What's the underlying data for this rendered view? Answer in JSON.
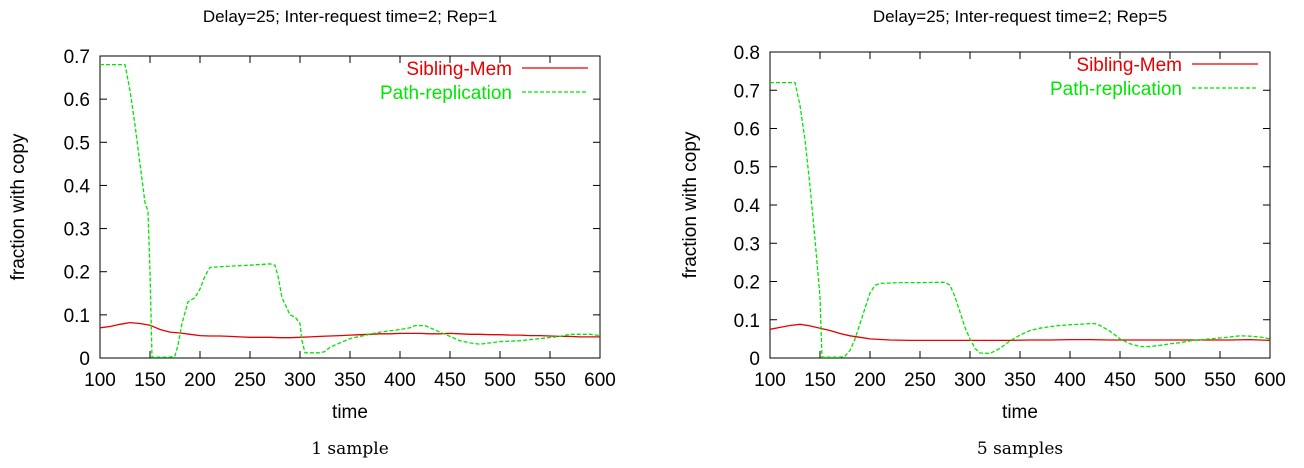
{
  "colors": {
    "sibling": "#e60000",
    "path": "#00e600",
    "axis": "#000000"
  },
  "chart_data": [
    {
      "type": "line",
      "title": "Delay=25; Inter-request time=2; Rep=1",
      "xlabel": "time",
      "ylabel": "fraction with copy",
      "caption": "1 sample",
      "xlim": [
        100,
        600
      ],
      "ylim": [
        0,
        0.7
      ],
      "xticks": [
        "100",
        "150",
        "200",
        "250",
        "300",
        "350",
        "400",
        "450",
        "500",
        "550",
        "600"
      ],
      "yticks": [
        "0",
        "0.1",
        "0.2",
        "0.3",
        "0.4",
        "0.5",
        "0.6",
        "0.7"
      ],
      "grid": false,
      "legend": "top-right",
      "series": [
        {
          "name": "Sibling-Mem",
          "x": [
            100,
            110,
            120,
            130,
            140,
            150,
            160,
            170,
            180,
            190,
            200,
            210,
            220,
            230,
            240,
            250,
            260,
            270,
            280,
            290,
            300,
            310,
            320,
            330,
            340,
            350,
            360,
            370,
            380,
            390,
            400,
            410,
            420,
            430,
            440,
            450,
            460,
            470,
            480,
            490,
            500,
            510,
            520,
            530,
            540,
            550,
            560,
            570,
            580,
            590,
            600
          ],
          "y": [
            0.07,
            0.073,
            0.078,
            0.082,
            0.08,
            0.076,
            0.066,
            0.06,
            0.058,
            0.055,
            0.052,
            0.051,
            0.051,
            0.05,
            0.049,
            0.048,
            0.048,
            0.048,
            0.047,
            0.047,
            0.048,
            0.049,
            0.05,
            0.051,
            0.052,
            0.053,
            0.054,
            0.055,
            0.056,
            0.056,
            0.057,
            0.057,
            0.057,
            0.056,
            0.056,
            0.057,
            0.056,
            0.055,
            0.055,
            0.054,
            0.054,
            0.053,
            0.053,
            0.052,
            0.052,
            0.051,
            0.05,
            0.05,
            0.049,
            0.049,
            0.049
          ]
        },
        {
          "name": "Path-replication",
          "x": [
            100,
            110,
            120,
            125,
            130,
            135,
            140,
            145,
            148,
            150,
            152,
            160,
            170,
            175,
            178,
            182,
            188,
            195,
            200,
            205,
            210,
            230,
            250,
            270,
            275,
            278,
            282,
            290,
            295,
            300,
            302,
            305,
            320,
            325,
            330,
            340,
            350,
            360,
            370,
            380,
            390,
            400,
            410,
            415,
            420,
            425,
            430,
            440,
            450,
            460,
            470,
            480,
            490,
            500,
            520,
            540,
            560,
            570,
            580,
            590,
            600
          ],
          "y": [
            0.68,
            0.68,
            0.68,
            0.68,
            0.62,
            0.54,
            0.45,
            0.36,
            0.34,
            0.2,
            0.002,
            0.002,
            0.002,
            0.005,
            0.03,
            0.08,
            0.13,
            0.14,
            0.16,
            0.19,
            0.21,
            0.213,
            0.215,
            0.218,
            0.215,
            0.19,
            0.14,
            0.1,
            0.095,
            0.08,
            0.04,
            0.012,
            0.012,
            0.015,
            0.025,
            0.035,
            0.045,
            0.05,
            0.055,
            0.06,
            0.063,
            0.066,
            0.07,
            0.075,
            0.075,
            0.075,
            0.07,
            0.06,
            0.05,
            0.04,
            0.035,
            0.032,
            0.035,
            0.038,
            0.04,
            0.045,
            0.05,
            0.055,
            0.055,
            0.055,
            0.052
          ]
        }
      ]
    },
    {
      "type": "line",
      "title": "Delay=25; Inter-request time=2; Rep=5",
      "xlabel": "time",
      "ylabel": "fraction with copy",
      "caption": "5 samples",
      "xlim": [
        100,
        600
      ],
      "ylim": [
        0,
        0.8
      ],
      "xticks": [
        "100",
        "150",
        "200",
        "250",
        "300",
        "350",
        "400",
        "450",
        "500",
        "550",
        "600"
      ],
      "yticks": [
        "0",
        "0.1",
        "0.2",
        "0.3",
        "0.4",
        "0.5",
        "0.6",
        "0.7",
        "0.8"
      ],
      "grid": false,
      "legend": "top-right",
      "series": [
        {
          "name": "Sibling-Mem",
          "x": [
            100,
            110,
            120,
            130,
            140,
            150,
            160,
            170,
            180,
            190,
            200,
            220,
            240,
            260,
            280,
            300,
            320,
            340,
            360,
            380,
            400,
            420,
            440,
            460,
            480,
            500,
            520,
            540,
            560,
            580,
            600
          ],
          "y": [
            0.075,
            0.08,
            0.085,
            0.088,
            0.084,
            0.078,
            0.072,
            0.064,
            0.058,
            0.054,
            0.05,
            0.047,
            0.046,
            0.046,
            0.046,
            0.046,
            0.046,
            0.046,
            0.047,
            0.047,
            0.048,
            0.048,
            0.047,
            0.047,
            0.047,
            0.047,
            0.047,
            0.047,
            0.047,
            0.048,
            0.046
          ]
        },
        {
          "name": "Path-replication",
          "x": [
            100,
            110,
            120,
            125,
            130,
            135,
            140,
            145,
            150,
            152,
            160,
            170,
            175,
            180,
            185,
            190,
            195,
            200,
            205,
            210,
            230,
            250,
            270,
            275,
            280,
            285,
            290,
            295,
            300,
            305,
            310,
            320,
            330,
            340,
            350,
            360,
            370,
            380,
            390,
            400,
            410,
            420,
            425,
            430,
            440,
            450,
            460,
            470,
            480,
            490,
            500,
            510,
            520,
            540,
            560,
            570,
            580,
            590,
            600
          ],
          "y": [
            0.72,
            0.72,
            0.72,
            0.72,
            0.66,
            0.57,
            0.45,
            0.31,
            0.16,
            0.002,
            0.002,
            0.002,
            0.005,
            0.02,
            0.05,
            0.09,
            0.13,
            0.17,
            0.19,
            0.195,
            0.197,
            0.197,
            0.198,
            0.198,
            0.19,
            0.16,
            0.12,
            0.08,
            0.05,
            0.025,
            0.013,
            0.012,
            0.025,
            0.045,
            0.06,
            0.072,
            0.078,
            0.082,
            0.085,
            0.087,
            0.088,
            0.09,
            0.09,
            0.085,
            0.07,
            0.05,
            0.037,
            0.03,
            0.03,
            0.033,
            0.037,
            0.04,
            0.045,
            0.05,
            0.055,
            0.058,
            0.057,
            0.055,
            0.05
          ]
        }
      ]
    }
  ]
}
